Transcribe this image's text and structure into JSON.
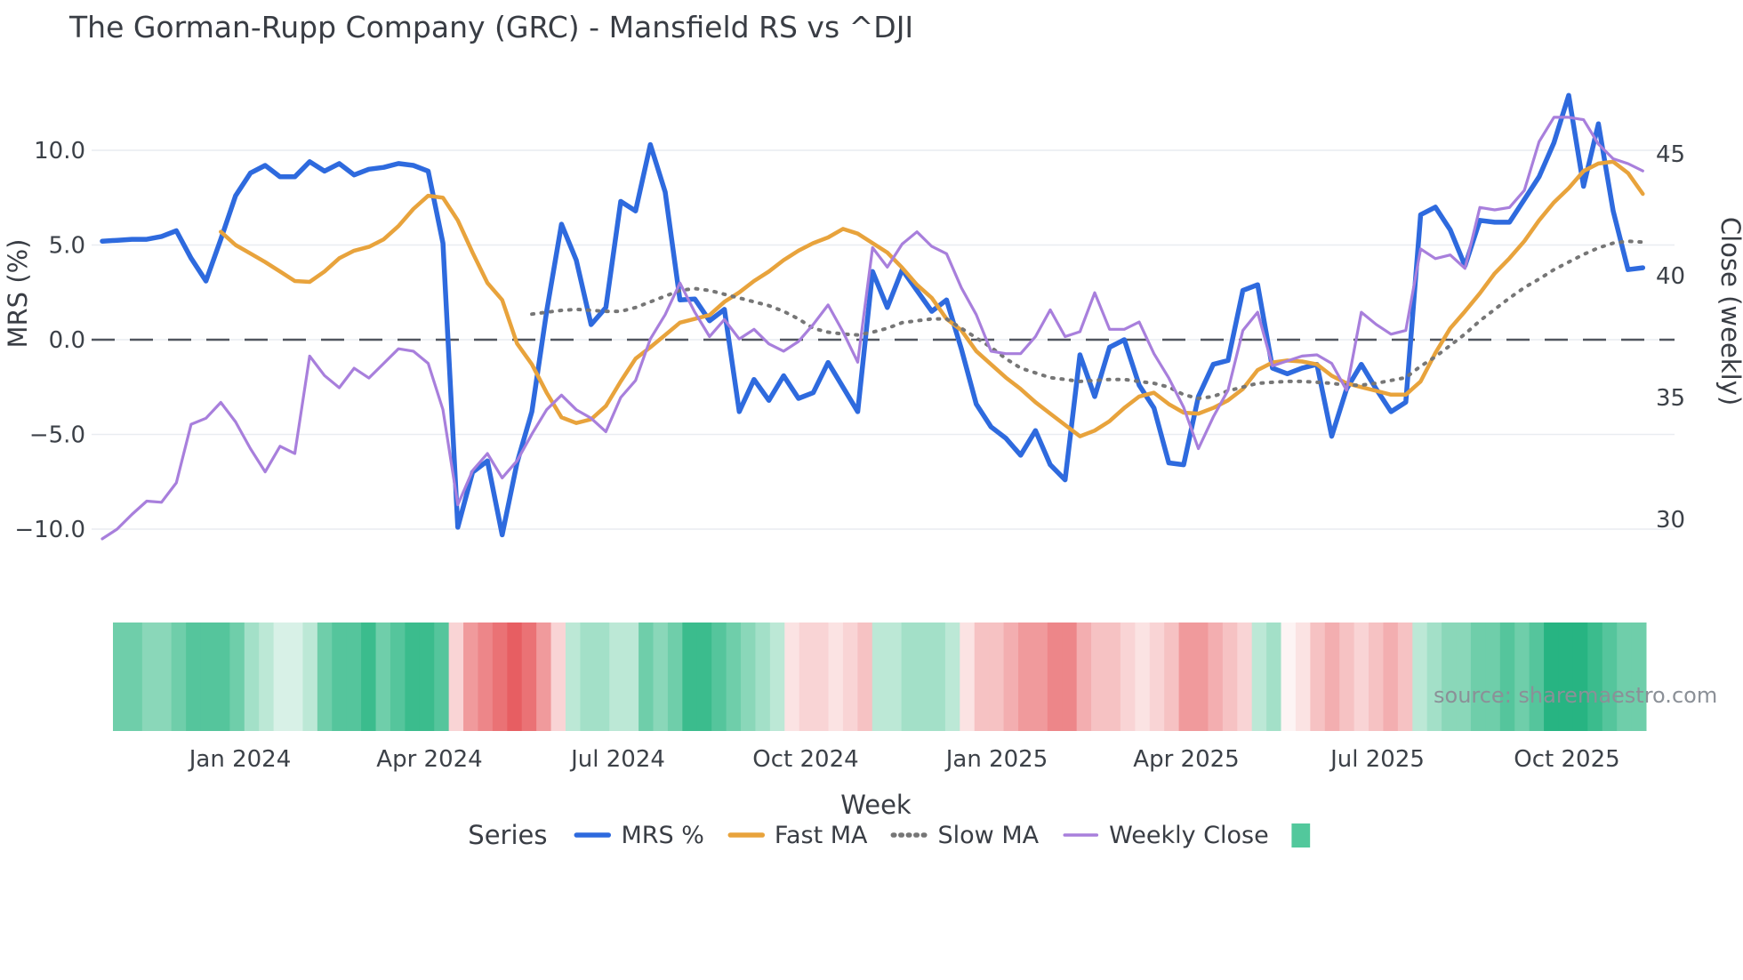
{
  "title": "The Gorman-Rupp Company (GRC) - Mansfield RS vs ^DJI",
  "source": "source: sharemaestro.com",
  "axes": {
    "left": {
      "label": "MRS (%)",
      "tick_labels": [
        "10.0",
        "5.0",
        "0.0",
        "−5.0",
        "−10.0"
      ],
      "tick_values": [
        10,
        5,
        0,
        -5,
        -10
      ]
    },
    "right": {
      "label": "Close (weekly)",
      "tick_labels": [
        "45",
        "40",
        "35",
        "30"
      ],
      "tick_values": [
        45,
        40,
        35,
        30
      ]
    },
    "x": {
      "label": "Week",
      "tick_labels": [
        "Jan 2024",
        "Apr 2024",
        "Jul 2024",
        "Oct 2024",
        "Jan 2025",
        "Apr 2025",
        "Jul 2025",
        "Oct 2025"
      ],
      "tick_weeks": [
        9.3,
        22.1,
        34.8,
        47.5,
        60.4,
        73.2,
        86.1,
        98.9
      ]
    }
  },
  "legend": {
    "title": "Series",
    "items": [
      {
        "label": "MRS %",
        "swatch": "line",
        "color": "#2e6ade"
      },
      {
        "label": "Fast MA",
        "swatch": "line",
        "color": "#e8a33c"
      },
      {
        "label": "Slow MA",
        "swatch": "dotted",
        "color": "#767676"
      },
      {
        "label": "Weekly Close",
        "swatch": "line-thin",
        "color": "#a87fdc"
      },
      {
        "label": "",
        "swatch": "rect",
        "color": "#52c89c"
      }
    ]
  },
  "chart_data": {
    "type": "line",
    "n_points": 105,
    "x_tick_labels": [
      "Jan 2024",
      "Apr 2024",
      "Jul 2024",
      "Oct 2024",
      "Jan 2025",
      "Apr 2025",
      "Jul 2025",
      "Oct 2025"
    ],
    "ylim_left": [
      -11.2,
      14.4
    ],
    "ylim_right": [
      28.7,
      48.6
    ],
    "grid": true,
    "zero_reference_line": 0,
    "series": [
      {
        "name": "MRS %",
        "axis": "left",
        "color": "#2e6ade",
        "style": "solid",
        "width": 5.5,
        "values": [
          5.2,
          5.25,
          5.3,
          5.3,
          5.45,
          5.75,
          4.3,
          3.1,
          5.3,
          7.6,
          8.8,
          9.2,
          8.6,
          8.6,
          9.4,
          8.9,
          9.3,
          8.7,
          9.0,
          9.1,
          9.3,
          9.2,
          8.9,
          5.1,
          -9.9,
          -7.0,
          -6.4,
          -10.3,
          -6.5,
          -3.8,
          1.5,
          6.1,
          4.2,
          0.8,
          1.7,
          7.3,
          6.8,
          10.3,
          7.8,
          2.1,
          2.15,
          1.0,
          1.6,
          -3.8,
          -2.1,
          -3.2,
          -1.9,
          -3.1,
          -2.8,
          -1.2,
          -2.5,
          -3.8,
          3.6,
          1.7,
          3.7,
          2.6,
          1.5,
          2.1,
          -0.5,
          -3.4,
          -4.6,
          -5.2,
          -6.1,
          -4.8,
          -6.6,
          -7.4,
          -0.8,
          -3.0,
          -0.4,
          0.0,
          -2.4,
          -3.6,
          -6.5,
          -6.6,
          -3.0,
          -1.3,
          -1.1,
          2.6,
          2.9,
          -1.5,
          -1.8,
          -1.5,
          -1.3,
          -5.1,
          -2.6,
          -1.3,
          -2.6,
          -3.8,
          -3.3,
          6.6,
          7.0,
          5.8,
          3.9,
          6.3,
          6.2,
          6.2,
          7.4,
          8.6,
          10.4,
          12.9,
          8.1,
          11.4,
          6.8,
          3.7,
          3.8
        ]
      },
      {
        "name": "Fast MA",
        "axis": "left",
        "color": "#e8a33c",
        "style": "solid",
        "width": 4.5,
        "values": [
          null,
          null,
          null,
          null,
          null,
          null,
          null,
          null,
          5.7,
          5.0,
          4.55,
          4.1,
          3.6,
          3.1,
          3.05,
          3.6,
          4.3,
          4.7,
          4.9,
          5.3,
          6.0,
          6.9,
          7.6,
          7.5,
          6.3,
          4.6,
          3.0,
          2.1,
          -0.2,
          -1.3,
          -2.8,
          -4.1,
          -4.4,
          -4.2,
          -3.5,
          -2.2,
          -1.0,
          -0.4,
          0.25,
          0.9,
          1.1,
          1.3,
          2.0,
          2.5,
          3.1,
          3.6,
          4.2,
          4.7,
          5.1,
          5.4,
          5.85,
          5.6,
          5.1,
          4.6,
          3.8,
          2.9,
          2.2,
          1.1,
          0.5,
          -0.6,
          -1.3,
          -2.0,
          -2.6,
          -3.3,
          -3.9,
          -4.5,
          -5.1,
          -4.8,
          -4.3,
          -3.6,
          -3.0,
          -2.8,
          -3.4,
          -3.85,
          -3.9,
          -3.6,
          -3.2,
          -2.6,
          -1.6,
          -1.2,
          -1.1,
          -1.15,
          -1.3,
          -1.9,
          -2.3,
          -2.5,
          -2.7,
          -2.9,
          -2.9,
          -2.2,
          -0.7,
          0.6,
          1.5,
          2.45,
          3.5,
          4.3,
          5.2,
          6.3,
          7.25,
          8.0,
          8.9,
          9.3,
          9.4,
          8.8,
          7.7
        ]
      },
      {
        "name": "Slow MA",
        "axis": "left",
        "color": "#767676",
        "style": "dotted",
        "width": 4,
        "values": [
          null,
          null,
          null,
          null,
          null,
          null,
          null,
          null,
          null,
          null,
          null,
          null,
          null,
          null,
          null,
          null,
          null,
          null,
          null,
          null,
          null,
          null,
          null,
          null,
          null,
          null,
          null,
          null,
          null,
          1.35,
          1.45,
          1.55,
          1.6,
          1.55,
          1.5,
          1.5,
          1.7,
          2.0,
          2.3,
          2.6,
          2.7,
          2.6,
          2.4,
          2.2,
          2.0,
          1.8,
          1.5,
          1.1,
          0.6,
          0.4,
          0.3,
          0.25,
          0.4,
          0.6,
          0.9,
          1.0,
          1.1,
          1.1,
          0.6,
          0.1,
          -0.4,
          -1.0,
          -1.5,
          -1.75,
          -2.0,
          -2.1,
          -2.2,
          -2.15,
          -2.1,
          -2.1,
          -2.2,
          -2.3,
          -2.5,
          -2.9,
          -3.1,
          -3.0,
          -2.7,
          -2.5,
          -2.3,
          -2.25,
          -2.2,
          -2.2,
          -2.25,
          -2.3,
          -2.4,
          -2.4,
          -2.3,
          -2.15,
          -2.0,
          -1.4,
          -0.9,
          -0.3,
          0.3,
          1.0,
          1.6,
          2.2,
          2.75,
          3.2,
          3.7,
          4.1,
          4.5,
          4.85,
          5.1,
          5.2,
          5.15
        ]
      },
      {
        "name": "Weekly Close",
        "axis": "right",
        "color": "#a87fdc",
        "style": "solid",
        "width": 3.2,
        "values": [
          29.2,
          29.6,
          30.2,
          30.75,
          30.7,
          31.5,
          33.9,
          34.15,
          34.8,
          34.0,
          32.9,
          31.95,
          33.0,
          32.7,
          36.7,
          35.9,
          35.4,
          36.2,
          35.8,
          36.4,
          37.0,
          36.9,
          36.4,
          34.5,
          30.6,
          32.0,
          32.7,
          31.7,
          32.4,
          33.5,
          34.5,
          35.1,
          34.5,
          34.15,
          33.6,
          35.0,
          35.7,
          37.4,
          38.4,
          39.7,
          38.5,
          37.5,
          38.2,
          37.4,
          37.8,
          37.2,
          36.9,
          37.3,
          38.0,
          38.8,
          37.7,
          36.45,
          41.15,
          40.35,
          41.3,
          41.8,
          41.2,
          40.9,
          39.5,
          38.4,
          36.9,
          36.8,
          36.8,
          37.5,
          38.6,
          37.5,
          37.7,
          39.3,
          37.8,
          37.8,
          38.1,
          36.8,
          35.8,
          34.6,
          32.9,
          34.2,
          35.3,
          37.75,
          38.5,
          36.3,
          36.5,
          36.7,
          36.75,
          36.4,
          35.3,
          38.5,
          38.0,
          37.6,
          37.75,
          41.1,
          40.7,
          40.85,
          40.3,
          42.8,
          42.7,
          42.8,
          43.5,
          45.5,
          46.5,
          46.5,
          46.4,
          45.4,
          44.8,
          44.6,
          44.3
        ]
      }
    ],
    "heatmap": {
      "description": "weekly performance strip under chart, green=positive red=negative",
      "cells": [
        "#6fceaa",
        "#6fceaa",
        "#8ad7b9",
        "#8ad7b9",
        "#6fceaa",
        "#55c59c",
        "#55c59c",
        "#55c59c",
        "#6fceaa",
        "#a3e0c8",
        "#bce8d6",
        "#d8f1e7",
        "#d8f1e7",
        "#bce8d6",
        "#6fceaa",
        "#55c59c",
        "#55c59c",
        "#3bbc8d",
        "#6fceaa",
        "#55c59c",
        "#3bbc8d",
        "#3bbc8d",
        "#55c59c",
        "#f9d4d5",
        "#f09a9c",
        "#ed8689",
        "#ea7275",
        "#e75e62",
        "#ea7275",
        "#f09a9c",
        "#f9d4d5",
        "#bce8d6",
        "#a3e0c8",
        "#a3e0c8",
        "#bce8d6",
        "#bce8d6",
        "#6fceaa",
        "#8ad7b9",
        "#6fceaa",
        "#3bbc8d",
        "#3bbc8d",
        "#55c59c",
        "#6fceaa",
        "#8ad7b9",
        "#a3e0c8",
        "#bce8d6",
        "#fbe3e3",
        "#f9d4d5",
        "#f9d4d5",
        "#fbe3e3",
        "#f9d4d5",
        "#f6c2c3",
        "#bce8d6",
        "#bce8d6",
        "#a3e0c8",
        "#a3e0c8",
        "#a3e0c8",
        "#bce8d6",
        "#fbe3e3",
        "#f6c2c3",
        "#f6c2c3",
        "#f3aeb0",
        "#f09a9c",
        "#f09a9c",
        "#ed8689",
        "#ed8689",
        "#f3aeb0",
        "#f6c2c3",
        "#f6c2c3",
        "#f9d4d5",
        "#fbe3e3",
        "#f9d4d5",
        "#f6c2c3",
        "#f09a9c",
        "#f09a9c",
        "#f3aeb0",
        "#f6c2c3",
        "#f9d4d5",
        "#bce8d6",
        "#a3e0c8",
        "#fdf4f4",
        "#fbe3e3",
        "#f6c2c3",
        "#f3aeb0",
        "#f6c2c3",
        "#f9d4d5",
        "#f6c2c3",
        "#f3aeb0",
        "#f6c2c3",
        "#bce8d6",
        "#a3e0c8",
        "#8ad7b9",
        "#8ad7b9",
        "#6fceaa",
        "#6fceaa",
        "#55c59c",
        "#6fceaa",
        "#55c59c",
        "#27b482",
        "#27b482",
        "#27b482",
        "#3bbc8d",
        "#55c59c",
        "#6fceaa",
        "#6fceaa"
      ]
    }
  }
}
